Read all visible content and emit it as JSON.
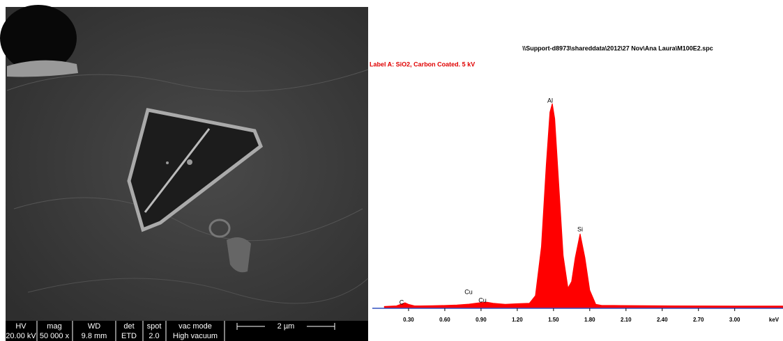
{
  "sem_bar": {
    "labels": [
      "HV",
      "mag",
      "WD",
      "det",
      "spot",
      "vac mode"
    ],
    "values": [
      "20.00 kV",
      "50 000 x",
      "9.8 mm",
      "ETD",
      "2.0",
      "High vacuum"
    ],
    "scale": "2 µm"
  },
  "chart_data": {
    "type": "area",
    "title": "\\\\Support-d8973\\shareddata\\2012\\27 Nov\\Ana Laura\\M100E2.spc",
    "subtitle": "Label A: SiO2, Carbon Coated.  5 kV",
    "x_label": "keV",
    "annotations": [
      "C",
      "Cu",
      "Cu",
      "Al",
      "Si"
    ],
    "xlim": [
      0,
      3.4
    ],
    "ylim": [
      0,
      100
    ],
    "xticks": [
      {
        "value": 0.3,
        "label": "0.30"
      },
      {
        "value": 0.6,
        "label": "0.60"
      },
      {
        "value": 0.9,
        "label": "0.90"
      },
      {
        "value": 1.2,
        "label": "1.20"
      },
      {
        "value": 1.5,
        "label": "1.50"
      },
      {
        "value": 1.8,
        "label": "1.80"
      },
      {
        "value": 2.1,
        "label": "2.10"
      },
      {
        "value": 2.4,
        "label": "2.40"
      },
      {
        "value": 2.7,
        "label": "2.70"
      },
      {
        "value": 3.0,
        "label": "3.00"
      }
    ],
    "series": [
      {
        "color": "#ff0000",
        "x": [
          0.1,
          0.2,
          0.25,
          0.27,
          0.3,
          0.35,
          0.4,
          0.5,
          0.6,
          0.7,
          0.8,
          0.9,
          0.95,
          1.0,
          1.1,
          1.2,
          1.3,
          1.35,
          1.4,
          1.44,
          1.47,
          1.49,
          1.51,
          1.54,
          1.58,
          1.62,
          1.65,
          1.68,
          1.72,
          1.76,
          1.8,
          1.85,
          1.9,
          2.0,
          2.5,
          3.0,
          3.4
        ],
        "values": [
          0.5,
          0.8,
          1.8,
          2.2,
          1.5,
          0.8,
          0.8,
          0.9,
          1,
          1.2,
          1.6,
          2.3,
          2.5,
          2,
          1.5,
          1.8,
          2,
          5.5,
          28,
          66,
          90,
          94,
          87,
          60,
          24,
          9,
          12,
          23,
          34,
          23,
          8,
          1.5,
          1,
          1,
          0.8,
          0.7,
          0.7
        ]
      }
    ]
  }
}
